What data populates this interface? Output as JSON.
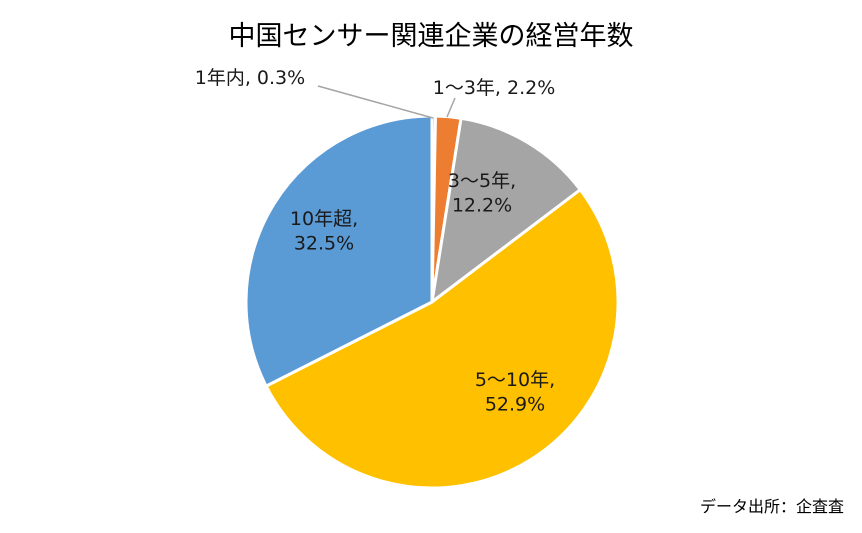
{
  "chart_data": {
    "type": "pie",
    "title": "中国センサー関連企業の経営年数",
    "categories": [
      "1年内",
      "1～3年",
      "3～5年",
      "5～10年",
      "10年超"
    ],
    "values": [
      0.3,
      2.2,
      12.2,
      52.9,
      32.5
    ],
    "value_suffix": "%",
    "colors": [
      "#A5A5A5",
      "#ED7D31",
      "#A5A5A5",
      "#FFC000",
      "#5B9BD5"
    ],
    "labels": [
      {
        "lines": [
          "1年内, 0.3%"
        ]
      },
      {
        "lines": [
          "1～3年, 2.2%"
        ]
      },
      {
        "lines": [
          "3～5年,",
          "12.2%"
        ]
      },
      {
        "lines": [
          "5～10年,",
          "52.9%"
        ]
      },
      {
        "lines": [
          "10年超,",
          "32.5%"
        ]
      }
    ],
    "start_angle": "12 o'clock, clockwise"
  },
  "source_note": "データ出所：企査査"
}
